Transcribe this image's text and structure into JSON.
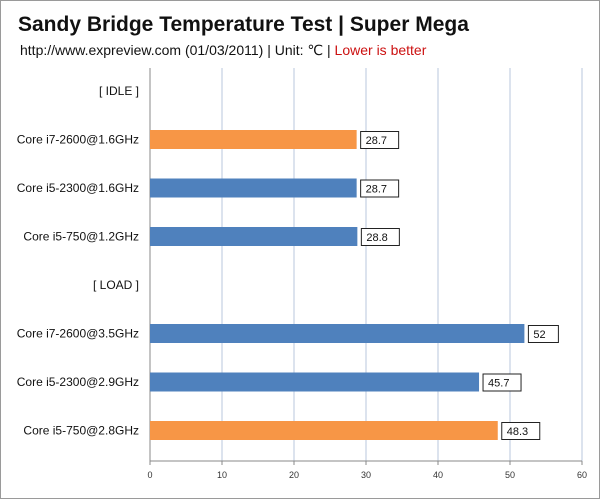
{
  "header": {
    "title": "Sandy Bridge Temperature Test | Super Mega",
    "subtitle_main": "http://www.expreview.com  (01/03/2011) | Unit: ℃ | ",
    "subtitle_note": "Lower is better"
  },
  "colors": {
    "blue": "#4f81bd",
    "orange": "#f79646",
    "grid": "#b9c7dc",
    "note": "#cc1111"
  },
  "chart_data": {
    "type": "bar",
    "orientation": "horizontal",
    "title": "Sandy Bridge Temperature Test | Super Mega",
    "xlabel": "",
    "ylabel": "",
    "xlim": [
      0,
      60
    ],
    "xticks": [
      0,
      10,
      20,
      30,
      40,
      50,
      60
    ],
    "grid": true,
    "categories": [
      "[ IDLE ]",
      "Core i7-2600@1.6GHz",
      "Core i5-2300@1.6GHz",
      "Core i5-750@1.2GHz",
      "[ LOAD ]",
      "Core i7-2600@3.5GHz",
      "Core i5-2300@2.9GHz",
      "Core i5-750@2.8GHz"
    ],
    "values": [
      null,
      28.7,
      28.7,
      28.8,
      null,
      52,
      45.7,
      48.3
    ],
    "value_labels": [
      "",
      "28.7",
      "28.7",
      "28.8",
      "",
      "52",
      "45.7",
      "48.3"
    ],
    "bar_colors": [
      "",
      "#f79646",
      "#4f81bd",
      "#4f81bd",
      "",
      "#4f81bd",
      "#4f81bd",
      "#f79646"
    ]
  }
}
